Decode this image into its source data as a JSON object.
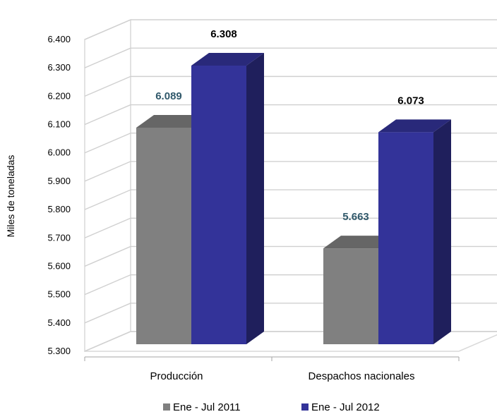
{
  "chart_data": {
    "type": "bar",
    "categories": [
      "Producción",
      "Despachos nacionales"
    ],
    "series": [
      {
        "name": "Ene -  Jul 2011",
        "values": [
          6089,
          5663
        ],
        "labels": [
          "6.089",
          "5.663"
        ],
        "color": "#808080",
        "label_color": "#31596B"
      },
      {
        "name": "Ene -  Jul 2012",
        "values": [
          6308,
          6073
        ],
        "labels": [
          "6.308",
          "6.073"
        ],
        "color": "#333399",
        "label_color": "#000000"
      }
    ],
    "ylabel": "Miles de toneladas",
    "ylim": [
      5300,
      6400
    ],
    "yticks": [
      5300,
      5400,
      5500,
      5600,
      5700,
      5800,
      5900,
      6000,
      6100,
      6200,
      6300,
      6400
    ],
    "ytick_labels": [
      "5.300",
      "5.400",
      "5.500",
      "5.600",
      "5.700",
      "5.800",
      "5.900",
      "6.000",
      "6.100",
      "6.200",
      "6.300",
      "6.400"
    ],
    "grid": true,
    "legend_position": "bottom",
    "style": "3d-column"
  }
}
